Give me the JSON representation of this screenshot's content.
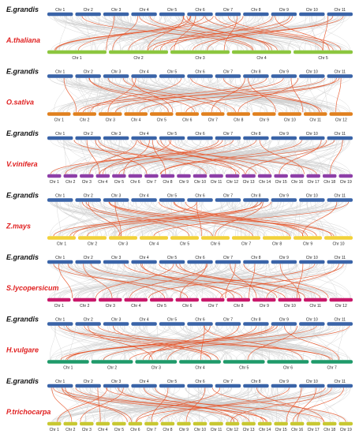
{
  "colors": {
    "ref": "#3a64a8",
    "background_links": "#d0d0d0",
    "highlight_links": "#e8572b",
    "ref_label": "#111111",
    "target_label": "#e02020"
  },
  "reference": {
    "species": "E.grandis",
    "chromosomes": [
      "Chr 1",
      "Chr 2",
      "Chr 3",
      "Chr 4",
      "Chr 5",
      "Chr 6",
      "Chr 7",
      "Chr 8",
      "Chr 9",
      "Chr 10",
      "Chr 11"
    ]
  },
  "panels": [
    {
      "target": "A.thaliana",
      "color": "#8cc63f",
      "chromosomes": [
        "Chr 1",
        "Chr 2",
        "Chr 3",
        "Chr 4",
        "Chr 5"
      ]
    },
    {
      "target": "O.sativa",
      "color": "#e0801e",
      "chromosomes": [
        "Chr 1",
        "Chr 2",
        "Chr 3",
        "Chr 4",
        "Chr 5",
        "Chr 6",
        "Chr 7",
        "Chr 8",
        "Chr 9",
        "Chr 10",
        "Chr 11",
        "Chr 12"
      ]
    },
    {
      "target": "V.vinifera",
      "color": "#8e3fa8",
      "chromosomes": [
        "Chr 1",
        "Chr 2",
        "Chr 3",
        "Chr 4",
        "Chr 5",
        "Chr 6",
        "Chr 7",
        "Chr 8",
        "Chr 9",
        "Chr 10",
        "Chr 11",
        "Chr 12",
        "Chr 13",
        "Chr 14",
        "Chr 15",
        "Chr 16",
        "Chr 17",
        "Chr 18",
        "Chr 19"
      ]
    },
    {
      "target": "Z.mays",
      "color": "#f2d23a",
      "chromosomes": [
        "Chr 1",
        "Chr 2",
        "Chr 3",
        "Chr 4",
        "Chr 5",
        "Chr 6",
        "Chr 7",
        "Chr 8",
        "Chr 9",
        "Chr 10"
      ]
    },
    {
      "target": "S.lycopersicum",
      "color": "#c8186a",
      "chromosomes": [
        "Chr 1",
        "Chr 2",
        "Chr 3",
        "Chr 4",
        "Chr 5",
        "Chr 6",
        "Chr 7",
        "Chr 8",
        "Chr 9",
        "Chr 10",
        "Chr 11",
        "Chr 12"
      ]
    },
    {
      "target": "H.vulgare",
      "color": "#1f9a6a",
      "chromosomes": [
        "Chr 1",
        "Chr 2",
        "Chr 3",
        "Chr 4",
        "Chr 5",
        "Chr 6",
        "Chr 7"
      ]
    },
    {
      "target": "P.trichocarpa",
      "color": "#c8c832",
      "chromosomes": [
        "Chr 1",
        "Chr 2",
        "Chr 3",
        "Chr 4",
        "Chr 5",
        "Chr 6",
        "Chr 7",
        "Chr 8",
        "Chr 9",
        "Chr 10",
        "Chr 11",
        "Chr 12",
        "Chr 13",
        "Chr 14",
        "Chr 15",
        "Chr 16",
        "Chr 17",
        "Chr 18",
        "Chr 19"
      ]
    }
  ]
}
